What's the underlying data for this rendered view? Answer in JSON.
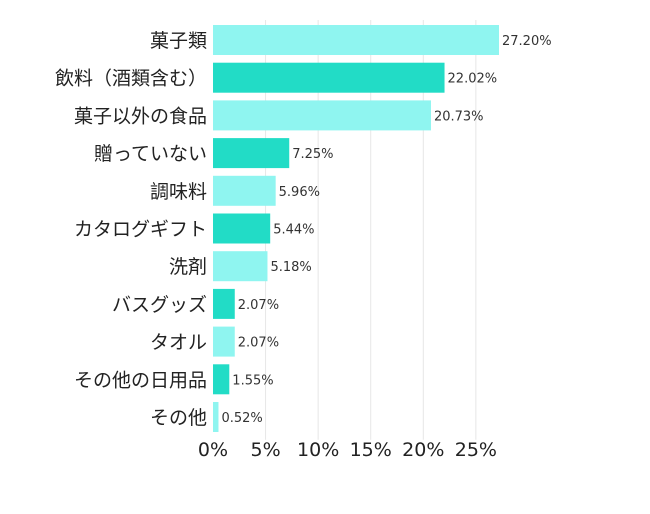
{
  "chart_data": {
    "type": "bar",
    "orientation": "horizontal",
    "categories": [
      "菓子類",
      "飲料（酒類含む）",
      "菓子以外の食品",
      "贈っていない",
      "調味料",
      "カタログギフト",
      "洗剤",
      "バスグッズ",
      "タオル",
      "その他の日用品",
      "その他"
    ],
    "values": [
      27.2,
      22.02,
      20.73,
      7.25,
      5.96,
      5.44,
      5.18,
      2.07,
      2.07,
      1.55,
      0.52
    ],
    "value_labels": [
      "27.20%",
      "22.02%",
      "20.73%",
      "7.25%",
      "5.96%",
      "5.44%",
      "5.18%",
      "2.07%",
      "2.07%",
      "1.55%",
      "0.52%"
    ],
    "x_ticks": [
      0,
      5,
      10,
      15,
      20,
      25
    ],
    "x_tick_labels": [
      "0%",
      "5%",
      "10%",
      "15%",
      "20%",
      "25%"
    ],
    "xlim": [
      0,
      27.2
    ],
    "grid": true,
    "legend": "none",
    "colors": {
      "light": "#8ff5f0",
      "dark": "#22dcc6"
    }
  }
}
